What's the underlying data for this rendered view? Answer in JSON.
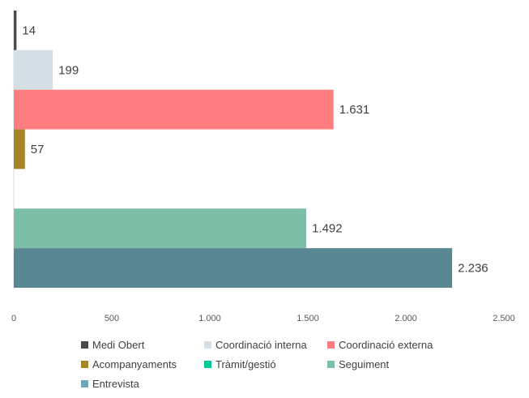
{
  "chart_data": {
    "type": "bar",
    "orientation": "horizontal",
    "categories": [
      "Medi Obert",
      "Coordinació interna",
      "Coordinació externa",
      "Acompanyaments",
      "Tràmit/gestió",
      "Seguiment",
      "Entrevista"
    ],
    "values": [
      14,
      199,
      1631,
      57,
      0,
      1492,
      2236
    ],
    "value_labels": [
      "14",
      "199",
      "1.631",
      "57",
      "",
      "1.492",
      "2.236"
    ],
    "colors": [
      "#4a4a4a",
      "#d3dfe5",
      "#ff7c80",
      "#a68528",
      "#00c896",
      "#7bbfa6",
      "#5a8892"
    ],
    "legend_colors": [
      "#4a4a4a",
      "#d3dfe5",
      "#ff7c80",
      "#a68528",
      "#00c896",
      "#7bbfa6",
      "#6fa6b8"
    ],
    "xlim": [
      0,
      2500
    ],
    "xticks": [
      0,
      500,
      1000,
      1500,
      2000,
      2500
    ],
    "xtick_labels": [
      "0",
      "500",
      "1.000",
      "1.500",
      "2.000",
      "2.500"
    ],
    "grid": false,
    "legend_position": "bottom",
    "legend_rows": [
      [
        0,
        1,
        2
      ],
      [
        3,
        4,
        5
      ],
      [
        6
      ]
    ]
  }
}
